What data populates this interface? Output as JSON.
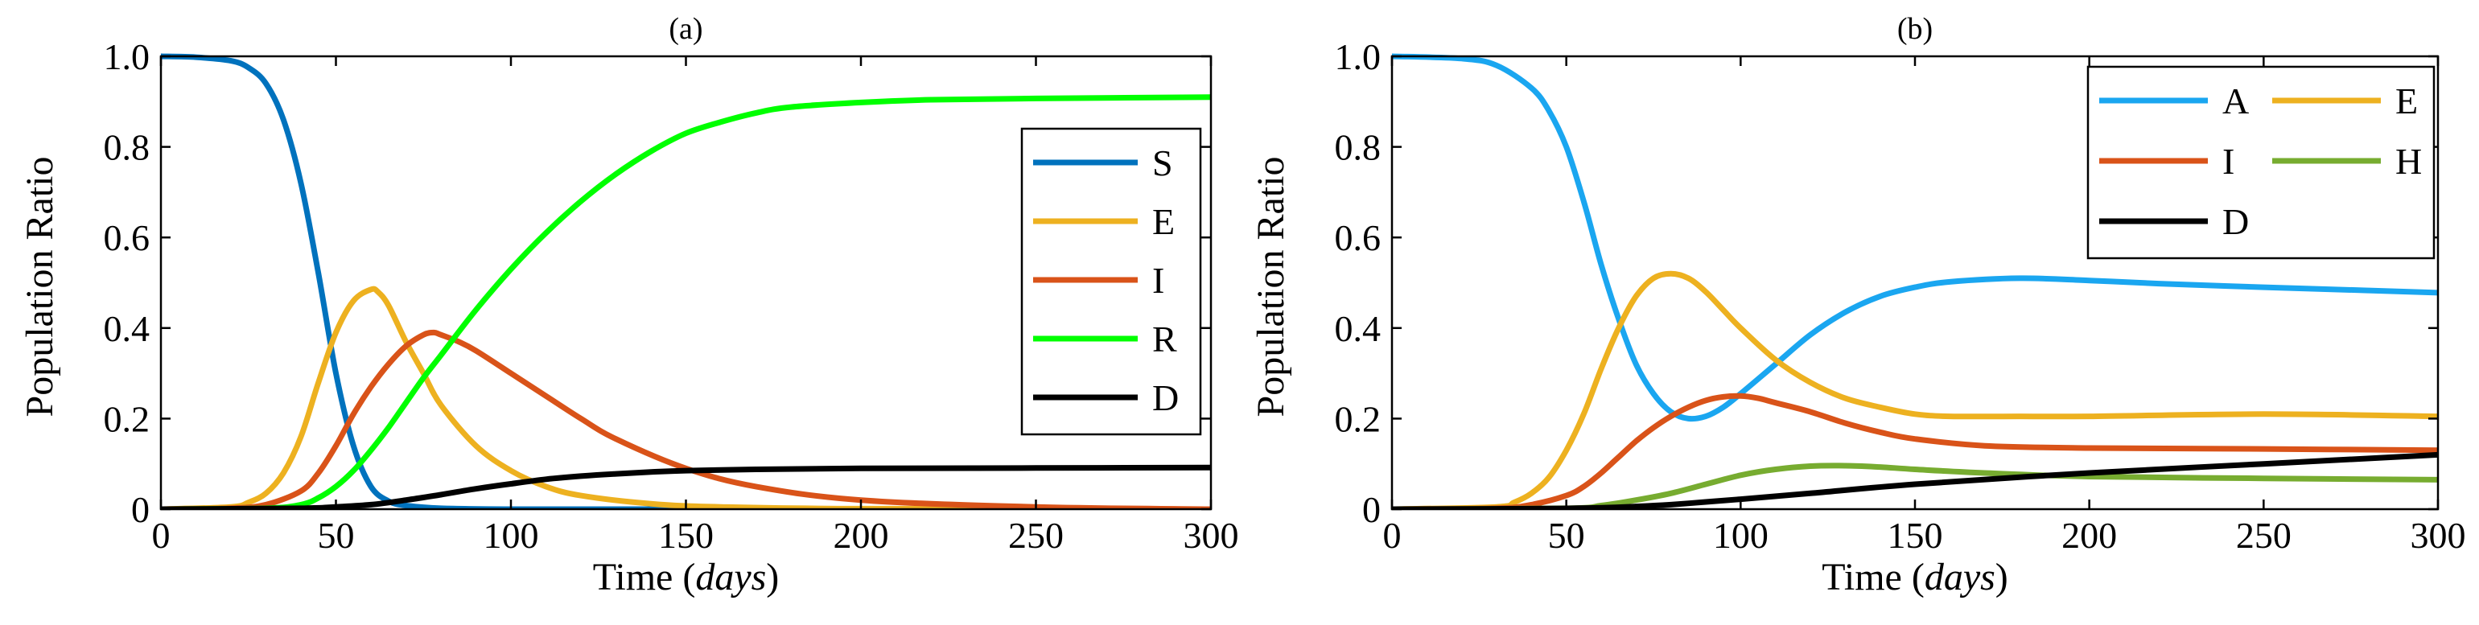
{
  "chart_data": [
    {
      "type": "line",
      "title": "(a)",
      "xlabel": "Time (days)",
      "xlabel_parts": {
        "prefix": "Time (",
        "italic": "days",
        "suffix": ")"
      },
      "ylabel": "Population Ratio",
      "xlim": [
        0,
        300
      ],
      "ylim": [
        0,
        1
      ],
      "xticks": [
        0,
        50,
        100,
        150,
        200,
        250,
        300
      ],
      "yticks": [
        0,
        0.2,
        0.4,
        0.6,
        0.8,
        1.0
      ],
      "ytick_labels": [
        "0",
        "0.2",
        "0.4",
        "0.6",
        "0.8",
        "1.0"
      ],
      "grid": false,
      "legend_position": "right",
      "legend_columns": 1,
      "series": [
        {
          "name": "S",
          "color": "#0072BD",
          "x": [
            0,
            10,
            20,
            25,
            30,
            35,
            40,
            45,
            50,
            55,
            60,
            65,
            70,
            80,
            100,
            150,
            200,
            250,
            300
          ],
          "y": [
            1.0,
            0.998,
            0.99,
            0.975,
            0.94,
            0.86,
            0.72,
            0.52,
            0.3,
            0.14,
            0.05,
            0.018,
            0.008,
            0.002,
            0,
            0,
            0,
            0,
            0
          ]
        },
        {
          "name": "E",
          "color": "#EDB120",
          "x": [
            0,
            20,
            25,
            30,
            35,
            40,
            45,
            50,
            55,
            60,
            62,
            65,
            70,
            75,
            80,
            90,
            100,
            110,
            120,
            140,
            160,
            200,
            300
          ],
          "y": [
            0,
            0.005,
            0.015,
            0.035,
            0.08,
            0.16,
            0.28,
            0.39,
            0.46,
            0.485,
            0.48,
            0.45,
            0.37,
            0.3,
            0.23,
            0.14,
            0.085,
            0.05,
            0.03,
            0.012,
            0.005,
            0.001,
            0
          ]
        },
        {
          "name": "I",
          "color": "#D95319",
          "x": [
            0,
            20,
            30,
            40,
            45,
            50,
            55,
            60,
            65,
            70,
            75,
            78,
            80,
            85,
            90,
            100,
            110,
            120,
            130,
            150,
            170,
            200,
            250,
            300
          ],
          "y": [
            0,
            0.002,
            0.01,
            0.04,
            0.08,
            0.14,
            0.21,
            0.27,
            0.32,
            0.36,
            0.385,
            0.39,
            0.385,
            0.37,
            0.35,
            0.3,
            0.25,
            0.2,
            0.155,
            0.09,
            0.05,
            0.02,
            0.005,
            0
          ]
        },
        {
          "name": "R",
          "color": "#00FF00",
          "x": [
            0,
            30,
            40,
            45,
            50,
            55,
            60,
            65,
            70,
            75,
            80,
            90,
            100,
            110,
            120,
            130,
            140,
            150,
            160,
            170,
            180,
            200,
            220,
            250,
            300
          ],
          "y": [
            0,
            0.002,
            0.01,
            0.025,
            0.05,
            0.085,
            0.13,
            0.18,
            0.235,
            0.29,
            0.34,
            0.44,
            0.53,
            0.61,
            0.68,
            0.74,
            0.79,
            0.83,
            0.855,
            0.875,
            0.888,
            0.898,
            0.904,
            0.907,
            0.91
          ]
        },
        {
          "name": "D",
          "color": "#000000",
          "x": [
            0,
            40,
            50,
            60,
            70,
            80,
            90,
            100,
            110,
            120,
            130,
            140,
            150,
            170,
            200,
            250,
            300
          ],
          "y": [
            0,
            0.002,
            0.005,
            0.01,
            0.02,
            0.032,
            0.045,
            0.056,
            0.066,
            0.073,
            0.078,
            0.082,
            0.085,
            0.088,
            0.09,
            0.091,
            0.092
          ]
        }
      ]
    },
    {
      "type": "line",
      "title": "(b)",
      "xlabel": "Time (days)",
      "xlabel_parts": {
        "prefix": "Time (",
        "italic": "days",
        "suffix": ")"
      },
      "ylabel": "Population Ratio",
      "xlim": [
        0,
        300
      ],
      "ylim": [
        0,
        1
      ],
      "xticks": [
        0,
        50,
        100,
        150,
        200,
        250,
        300
      ],
      "yticks": [
        0,
        0.2,
        0.4,
        0.6,
        0.8,
        1.0
      ],
      "ytick_labels": [
        "0",
        "0.2",
        "0.4",
        "0.6",
        "0.8",
        "1.0"
      ],
      "grid": false,
      "legend_position": "top-right",
      "legend_columns": 2,
      "series": [
        {
          "name": "A",
          "color": "#1AA6F0",
          "x": [
            0,
            20,
            30,
            40,
            45,
            50,
            55,
            60,
            65,
            70,
            75,
            80,
            85,
            90,
            95,
            100,
            110,
            120,
            130,
            140,
            150,
            160,
            180,
            200,
            220,
            250,
            280,
            300
          ],
          "y": [
            1.0,
            0.995,
            0.98,
            0.93,
            0.88,
            0.8,
            0.68,
            0.54,
            0.42,
            0.32,
            0.255,
            0.215,
            0.2,
            0.205,
            0.225,
            0.255,
            0.32,
            0.385,
            0.435,
            0.47,
            0.49,
            0.502,
            0.51,
            0.505,
            0.498,
            0.49,
            0.483,
            0.478
          ]
        },
        {
          "name": "E",
          "color": "#EDB120",
          "x": [
            0,
            30,
            35,
            40,
            45,
            50,
            55,
            60,
            65,
            70,
            75,
            80,
            85,
            90,
            95,
            100,
            110,
            120,
            130,
            140,
            150,
            160,
            180,
            200,
            250,
            300
          ],
          "y": [
            0,
            0.005,
            0.015,
            0.035,
            0.07,
            0.13,
            0.21,
            0.31,
            0.4,
            0.47,
            0.51,
            0.52,
            0.51,
            0.48,
            0.44,
            0.4,
            0.33,
            0.28,
            0.245,
            0.225,
            0.21,
            0.205,
            0.205,
            0.205,
            0.21,
            0.205
          ]
        },
        {
          "name": "I",
          "color": "#D95319",
          "x": [
            0,
            30,
            40,
            50,
            55,
            60,
            65,
            70,
            75,
            80,
            85,
            90,
            95,
            100,
            105,
            110,
            120,
            130,
            140,
            150,
            170,
            200,
            250,
            300
          ],
          "y": [
            0,
            0.002,
            0.01,
            0.03,
            0.05,
            0.08,
            0.115,
            0.15,
            0.18,
            0.205,
            0.225,
            0.24,
            0.248,
            0.25,
            0.245,
            0.235,
            0.215,
            0.19,
            0.17,
            0.155,
            0.14,
            0.135,
            0.133,
            0.13
          ]
        },
        {
          "name": "H",
          "color": "#77AC30",
          "x": [
            0,
            50,
            60,
            70,
            80,
            90,
            100,
            110,
            120,
            130,
            140,
            150,
            170,
            200,
            250,
            300
          ],
          "y": [
            0,
            0.002,
            0.008,
            0.02,
            0.035,
            0.055,
            0.075,
            0.088,
            0.095,
            0.096,
            0.093,
            0.088,
            0.08,
            0.072,
            0.068,
            0.065
          ]
        },
        {
          "name": "D",
          "color": "#000000",
          "x": [
            0,
            40,
            60,
            70,
            80,
            90,
            100,
            120,
            150,
            200,
            250,
            300
          ],
          "y": [
            0,
            0.001,
            0.003,
            0.006,
            0.01,
            0.016,
            0.022,
            0.035,
            0.055,
            0.08,
            0.1,
            0.12
          ]
        }
      ]
    }
  ]
}
